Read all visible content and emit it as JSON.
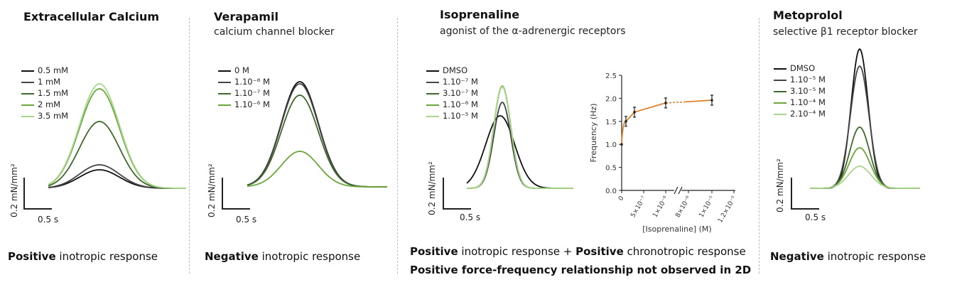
{
  "palette": [
    "#111111",
    "#444444",
    "#3d6a2a",
    "#6aa63c",
    "#a8d68a"
  ],
  "scale_bar": {
    "force_label": "0.2 mN/mm²",
    "time_label": "0.5 s"
  },
  "panels": [
    {
      "title": "Extracellular Calcium",
      "subtitle": "",
      "legend": [
        "0.5 mM",
        "1 mM",
        "1.5 mM",
        "2 mM",
        "3.5 mM"
      ],
      "response": {
        "bold": "Positive",
        "rest": " inotropic response"
      }
    },
    {
      "title": "Verapamil",
      "subtitle": "calcium channel blocker",
      "legend": [
        "0 M",
        "1.10⁻⁸ M",
        "1.10⁻⁷ M",
        "1.10⁻⁶ M"
      ],
      "response": {
        "bold": "Negative",
        "rest": " inotropic response"
      }
    },
    {
      "title": "Isoprenaline",
      "subtitle": "agonist of the α-adrenergic receptors",
      "legend": [
        "DMSO",
        "1.10⁻⁷ M",
        "3.10⁻⁷ M",
        "1.10⁻⁶ M",
        "1.10⁻⁵ M"
      ],
      "response": {
        "bold": "Positive",
        "mid": " inotropic response + ",
        "bold2": "Positive",
        "rest": " chronotropic response"
      },
      "note": "Positive force-frequency relationship not observed in 2D"
    },
    {
      "title": "Metoprolol",
      "subtitle": "selective β1 receptor blocker",
      "legend": [
        "DMSO",
        "1.10⁻⁵ M",
        "3.10⁻⁵ M",
        "1.10⁻⁴ M",
        "2.10⁻⁴ M"
      ],
      "response": {
        "bold": "Negative",
        "rest": " inotropic response"
      }
    }
  ],
  "chart_data": [
    {
      "type": "line",
      "title": "Extracellular Calcium",
      "series": [
        {
          "name": "0.5 mM",
          "peak": 0.26,
          "color": "#111111"
        },
        {
          "name": "1 mM",
          "peak": 0.33,
          "color": "#444444"
        },
        {
          "name": "1.5 mM",
          "peak": 0.94,
          "color": "#3d6a2a"
        },
        {
          "name": "2 mM",
          "peak": 1.4,
          "color": "#6aa63c"
        },
        {
          "name": "3.5 mM",
          "peak": 1.47,
          "color": "#a8d68a"
        }
      ]
    },
    {
      "type": "line",
      "title": "Verapamil",
      "series": [
        {
          "name": "0 M",
          "peak": 1.48,
          "color": "#111111"
        },
        {
          "name": "1.10⁻⁸ M",
          "peak": 1.45,
          "color": "#444444"
        },
        {
          "name": "1.10⁻⁷ M",
          "peak": 1.29,
          "color": "#3d6a2a"
        },
        {
          "name": "1.10⁻⁶ M",
          "peak": 0.5,
          "color": "#6aa63c"
        }
      ]
    },
    {
      "type": "line",
      "title": "Isoprenaline",
      "series": [
        {
          "name": "DMSO",
          "peak": 1.02,
          "color": "#111111"
        },
        {
          "name": "1.10⁻⁷ M",
          "peak": 1.21,
          "color": "#444444"
        },
        {
          "name": "3.10⁻⁷ M",
          "peak": 1.43,
          "color": "#3d6a2a"
        },
        {
          "name": "1.10⁻⁶ M",
          "peak": 1.44,
          "color": "#6aa63c"
        },
        {
          "name": "1.10⁻⁵ M",
          "peak": 1.43,
          "color": "#a8d68a"
        }
      ]
    },
    {
      "type": "scatter",
      "xlabel": "[Isoprenaline] (M)",
      "ylabel": "Frequency (Hz)",
      "ylim": [
        0.0,
        2.5
      ],
      "yticks": [
        "0.0",
        "0.5",
        "1.0",
        "1.5",
        "2.0",
        "2.5"
      ],
      "xticks": [
        "0",
        "5×10⁻⁷",
        "1×10⁻⁶",
        "8×10⁻⁶",
        "1×10⁻⁵",
        "1.2×10⁻⁵"
      ],
      "points": [
        {
          "x": "0",
          "y": 1.0
        },
        {
          "x": "1×10⁻⁷",
          "y": 1.5
        },
        {
          "x": "3×10⁻⁷",
          "y": 1.7
        },
        {
          "x": "1×10⁻⁶",
          "y": 1.9
        },
        {
          "x": "1×10⁻⁵",
          "y": 1.96
        }
      ],
      "line_color": "#e0802c"
    },
    {
      "type": "line",
      "title": "Metoprolol",
      "series": [
        {
          "name": "DMSO",
          "peak": 1.96,
          "color": "#111111"
        },
        {
          "name": "1.10⁻⁵ M",
          "peak": 1.72,
          "color": "#444444"
        },
        {
          "name": "3.10⁻⁵ M",
          "peak": 0.86,
          "color": "#3d6a2a"
        },
        {
          "name": "1.10⁻⁴ M",
          "peak": 0.57,
          "color": "#6aa63c"
        },
        {
          "name": "2.10⁻⁴ M",
          "peak": 0.31,
          "color": "#a8d68a"
        }
      ]
    }
  ]
}
